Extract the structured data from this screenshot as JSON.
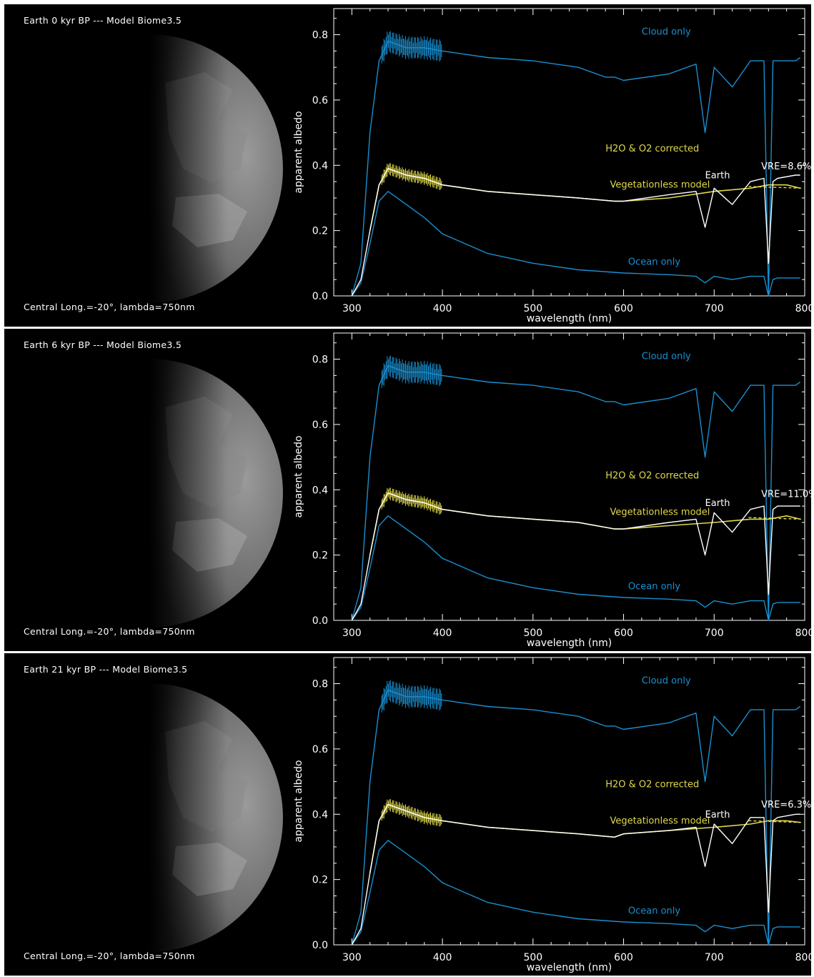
{
  "colors": {
    "background": "#000000",
    "cloud": "#1a8fd0",
    "ocean": "#1a8fd0",
    "earth": "#ffffff",
    "vegetationless": "#e0d94a",
    "axis": "#ffffff"
  },
  "panels": [
    {
      "title": "Earth 0 kyr BP --- Model Biome3.5",
      "caption": "Central Long.=-20°, lambda=750nm",
      "labels": {
        "cloud": "Cloud only",
        "ocean": "Ocean only",
        "vegetationless": "Vegetationless model",
        "corrected": "H2O & O2 corrected",
        "earth": "Earth",
        "vre": "VRE=8.6%"
      }
    },
    {
      "title": "Earth 6 kyr BP --- Model Biome3.5",
      "caption": "Central Long.=-20°, lambda=750nm",
      "labels": {
        "cloud": "Cloud only",
        "ocean": "Ocean only",
        "vegetationless": "Vegetationless model",
        "corrected": "H2O & O2 corrected",
        "earth": "Earth",
        "vre": "VRE=11.0%"
      }
    },
    {
      "title": "Earth 21 kyr BP --- Model Biome3.5",
      "caption": "Central Long.=-20°, lambda=750nm",
      "labels": {
        "cloud": "Cloud only",
        "ocean": "Ocean only",
        "vegetationless": "Vegetationless model",
        "corrected": "H2O & O2 corrected",
        "earth": "Earth",
        "vre": "VRE=6.3%"
      }
    }
  ],
  "chart_data": [
    {
      "type": "line",
      "xlabel": "wavelength (nm)",
      "ylabel": "apparent albedo",
      "xlim": [
        280,
        800
      ],
      "ylim": [
        0,
        0.88
      ],
      "xticks": [
        "300",
        "400",
        "500",
        "600",
        "700",
        "800"
      ],
      "yticks": [
        "0.0",
        "0.2",
        "0.4",
        "0.6",
        "0.8"
      ],
      "series": [
        {
          "name": "Cloud only",
          "x": [
            300,
            310,
            320,
            330,
            340,
            360,
            380,
            400,
            450,
            500,
            550,
            580,
            590,
            600,
            650,
            680,
            690,
            700,
            720,
            740,
            755,
            760,
            765,
            770,
            790,
            795
          ],
          "y": [
            0.0,
            0.1,
            0.5,
            0.72,
            0.78,
            0.76,
            0.76,
            0.75,
            0.73,
            0.72,
            0.7,
            0.67,
            0.67,
            0.66,
            0.68,
            0.71,
            0.5,
            0.7,
            0.64,
            0.72,
            0.72,
            0.0,
            0.72,
            0.72,
            0.72,
            0.73
          ]
        },
        {
          "name": "Earth",
          "x": [
            300,
            310,
            320,
            330,
            340,
            360,
            380,
            400,
            450,
            500,
            550,
            590,
            600,
            650,
            680,
            690,
            700,
            720,
            740,
            755,
            760,
            765,
            770,
            790,
            795
          ],
          "y": [
            0.0,
            0.05,
            0.2,
            0.34,
            0.39,
            0.37,
            0.36,
            0.34,
            0.32,
            0.31,
            0.3,
            0.29,
            0.29,
            0.31,
            0.32,
            0.21,
            0.33,
            0.28,
            0.35,
            0.36,
            0.1,
            0.35,
            0.36,
            0.37,
            0.37
          ]
        },
        {
          "name": "Vegetationless model",
          "x": [
            320,
            330,
            340,
            360,
            380,
            400,
            450,
            500,
            550,
            590,
            600,
            650,
            700,
            740,
            760,
            780,
            795
          ],
          "y": [
            0.2,
            0.34,
            0.39,
            0.37,
            0.36,
            0.34,
            0.32,
            0.31,
            0.3,
            0.29,
            0.29,
            0.3,
            0.32,
            0.33,
            0.34,
            0.34,
            0.33
          ]
        },
        {
          "name": "Ocean only",
          "x": [
            300,
            310,
            320,
            330,
            340,
            360,
            380,
            400,
            450,
            500,
            550,
            600,
            650,
            680,
            690,
            700,
            720,
            740,
            755,
            760,
            765,
            770,
            790,
            795
          ],
          "y": [
            0.0,
            0.04,
            0.16,
            0.29,
            0.32,
            0.28,
            0.24,
            0.19,
            0.13,
            0.1,
            0.08,
            0.07,
            0.065,
            0.06,
            0.04,
            0.06,
            0.05,
            0.06,
            0.06,
            0.0,
            0.05,
            0.055,
            0.055,
            0.055
          ]
        }
      ]
    },
    {
      "type": "line",
      "xlabel": "wavelength (nm)",
      "ylabel": "apparent albedo",
      "xlim": [
        280,
        800
      ],
      "ylim": [
        0,
        0.88
      ],
      "xticks": [
        "300",
        "400",
        "500",
        "600",
        "700",
        "800"
      ],
      "yticks": [
        "0.0",
        "0.2",
        "0.4",
        "0.6",
        "0.8"
      ],
      "series": [
        {
          "name": "Cloud only",
          "x": [
            300,
            310,
            320,
            330,
            340,
            360,
            380,
            400,
            450,
            500,
            550,
            580,
            590,
            600,
            650,
            680,
            690,
            700,
            720,
            740,
            755,
            760,
            765,
            770,
            790,
            795
          ],
          "y": [
            0.0,
            0.1,
            0.5,
            0.72,
            0.78,
            0.76,
            0.76,
            0.75,
            0.73,
            0.72,
            0.7,
            0.67,
            0.67,
            0.66,
            0.68,
            0.71,
            0.5,
            0.7,
            0.64,
            0.72,
            0.72,
            0.0,
            0.72,
            0.72,
            0.72,
            0.73
          ]
        },
        {
          "name": "Earth",
          "x": [
            300,
            310,
            320,
            330,
            340,
            360,
            380,
            400,
            450,
            500,
            550,
            590,
            600,
            650,
            680,
            690,
            700,
            720,
            740,
            755,
            760,
            765,
            770,
            790,
            795
          ],
          "y": [
            0.0,
            0.05,
            0.2,
            0.34,
            0.39,
            0.37,
            0.36,
            0.34,
            0.32,
            0.31,
            0.3,
            0.28,
            0.28,
            0.3,
            0.31,
            0.2,
            0.33,
            0.27,
            0.34,
            0.35,
            0.08,
            0.34,
            0.35,
            0.35,
            0.35
          ]
        },
        {
          "name": "Vegetationless model",
          "x": [
            320,
            330,
            340,
            360,
            380,
            400,
            450,
            500,
            550,
            590,
            600,
            650,
            700,
            740,
            760,
            780,
            795
          ],
          "y": [
            0.2,
            0.34,
            0.39,
            0.37,
            0.36,
            0.34,
            0.32,
            0.31,
            0.3,
            0.28,
            0.28,
            0.29,
            0.3,
            0.31,
            0.31,
            0.32,
            0.31
          ]
        },
        {
          "name": "Ocean only",
          "x": [
            300,
            310,
            320,
            330,
            340,
            360,
            380,
            400,
            450,
            500,
            550,
            600,
            650,
            680,
            690,
            700,
            720,
            740,
            755,
            760,
            765,
            770,
            790,
            795
          ],
          "y": [
            0.0,
            0.04,
            0.16,
            0.29,
            0.32,
            0.28,
            0.24,
            0.19,
            0.13,
            0.1,
            0.08,
            0.07,
            0.065,
            0.06,
            0.04,
            0.06,
            0.05,
            0.06,
            0.06,
            0.0,
            0.05,
            0.055,
            0.055,
            0.055
          ]
        }
      ]
    },
    {
      "type": "line",
      "xlabel": "wavelength (nm)",
      "ylabel": "apparent albedo",
      "xlim": [
        280,
        800
      ],
      "ylim": [
        0,
        0.88
      ],
      "xticks": [
        "300",
        "400",
        "500",
        "600",
        "700",
        "800"
      ],
      "yticks": [
        "0.0",
        "0.2",
        "0.4",
        "0.6",
        "0.8"
      ],
      "series": [
        {
          "name": "Cloud only",
          "x": [
            300,
            310,
            320,
            330,
            340,
            360,
            380,
            400,
            450,
            500,
            550,
            580,
            590,
            600,
            650,
            680,
            690,
            700,
            720,
            740,
            755,
            760,
            765,
            770,
            790,
            795
          ],
          "y": [
            0.0,
            0.1,
            0.5,
            0.72,
            0.78,
            0.76,
            0.76,
            0.75,
            0.73,
            0.72,
            0.7,
            0.67,
            0.67,
            0.66,
            0.68,
            0.71,
            0.5,
            0.7,
            0.64,
            0.72,
            0.72,
            0.0,
            0.72,
            0.72,
            0.72,
            0.73
          ]
        },
        {
          "name": "Earth",
          "x": [
            300,
            310,
            320,
            330,
            340,
            360,
            380,
            400,
            450,
            500,
            550,
            590,
            600,
            650,
            680,
            690,
            700,
            720,
            740,
            755,
            760,
            765,
            770,
            790,
            795
          ],
          "y": [
            0.0,
            0.05,
            0.22,
            0.38,
            0.43,
            0.41,
            0.39,
            0.38,
            0.36,
            0.35,
            0.34,
            0.33,
            0.34,
            0.35,
            0.36,
            0.24,
            0.37,
            0.31,
            0.39,
            0.39,
            0.1,
            0.38,
            0.39,
            0.4,
            0.4
          ]
        },
        {
          "name": "Vegetationless model",
          "x": [
            320,
            330,
            340,
            360,
            380,
            400,
            450,
            500,
            550,
            590,
            600,
            650,
            700,
            740,
            760,
            780,
            795
          ],
          "y": [
            0.22,
            0.38,
            0.43,
            0.41,
            0.39,
            0.38,
            0.36,
            0.35,
            0.34,
            0.33,
            0.34,
            0.35,
            0.36,
            0.37,
            0.38,
            0.38,
            0.375
          ]
        },
        {
          "name": "Ocean only",
          "x": [
            300,
            310,
            320,
            330,
            340,
            360,
            380,
            400,
            450,
            500,
            550,
            600,
            650,
            680,
            690,
            700,
            720,
            740,
            755,
            760,
            765,
            770,
            790,
            795
          ],
          "y": [
            0.0,
            0.04,
            0.16,
            0.29,
            0.32,
            0.28,
            0.24,
            0.19,
            0.13,
            0.1,
            0.08,
            0.07,
            0.065,
            0.06,
            0.04,
            0.06,
            0.05,
            0.06,
            0.06,
            0.0,
            0.05,
            0.055,
            0.055,
            0.055
          ]
        }
      ]
    }
  ]
}
